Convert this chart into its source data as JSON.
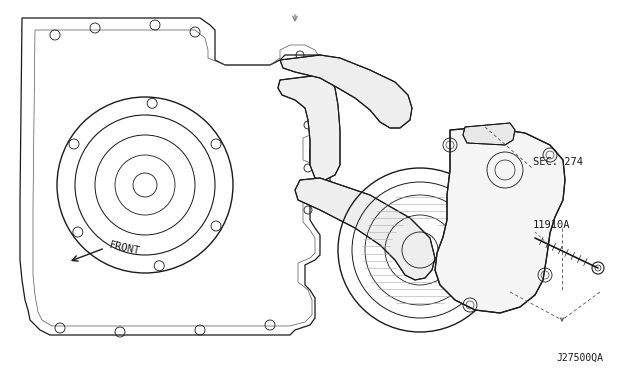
{
  "background_color": "#ffffff",
  "fig_width": 6.4,
  "fig_height": 3.72,
  "dpi": 100,
  "labels": {
    "sec274": "SEC. 274",
    "part_num": "11910A",
    "diagram_code": "J27500QA",
    "front": "FRONT"
  },
  "text_color": "#1a1a1a",
  "line_color": "#1a1a1a",
  "dashed_color": "#555555",
  "gray_color": "#888888"
}
